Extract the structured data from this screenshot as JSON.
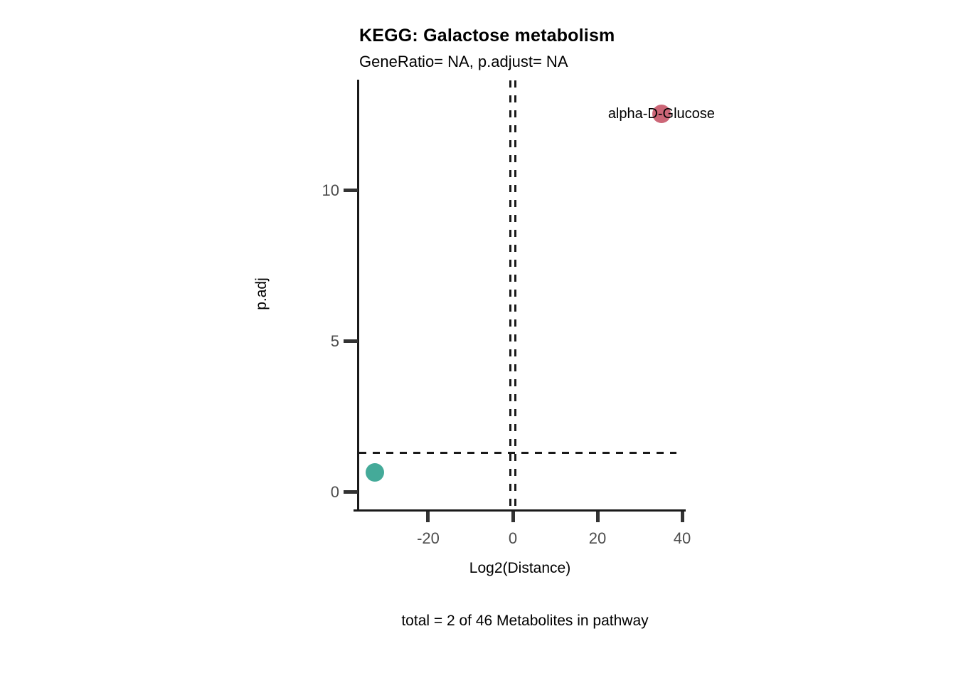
{
  "chart_data": {
    "type": "scatter",
    "title": "KEGG: Galactose metabolism",
    "subtitle": "GeneRatio= NA, p.adjust= NA",
    "xlabel": "Log2(Distance)",
    "ylabel": "p.adj",
    "caption": "total = 2 of 46 Metabolites in pathway",
    "xlim": [
      -36.3,
      40.5
    ],
    "ylim": [
      -0.6,
      13.65
    ],
    "xticks": [
      -20,
      0,
      20,
      40
    ],
    "yticks": [
      0,
      5,
      10
    ],
    "grid": false,
    "legend": "none",
    "threshold_lines": {
      "style": "dashed",
      "horizontal_y": 1.3,
      "vertical_x": [
        -0.6,
        0.6
      ]
    },
    "points": [
      {
        "label": "alpha-D-Glucose",
        "x": 35.1,
        "y": 12.55,
        "color": "#CC6677"
      },
      {
        "label": "",
        "x": -32.6,
        "y": 0.64,
        "color": "#44AA99"
      }
    ],
    "colors": {
      "axis": "#1a1a1a",
      "tick": "#333333",
      "tick_label": "#4d4d4d",
      "text": "#000000",
      "background": "#ffffff"
    }
  }
}
